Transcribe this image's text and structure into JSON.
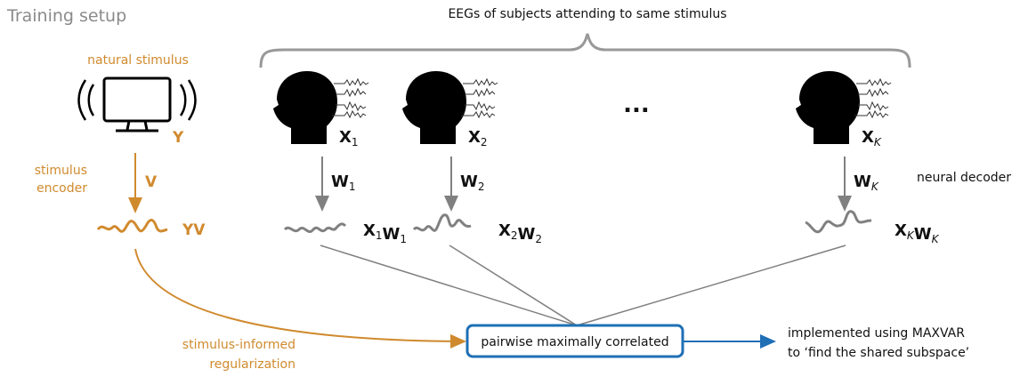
{
  "title": "Training setup",
  "brace_label": "EEGs of subjects attending to same stimulus",
  "stimulus": {
    "label": "natural stimulus",
    "signal": "Y",
    "encoder_lines": [
      "stimulus",
      "encoder"
    ],
    "encoder": "V",
    "output": "YV"
  },
  "ellipsis": "...",
  "subjects": [
    {
      "eeg": {
        "base": "X",
        "sub": "1"
      },
      "decoder": {
        "base": "W",
        "sub": "1"
      },
      "output": [
        {
          "base": "X",
          "sub": "1"
        },
        {
          "base": "W",
          "sub": "1"
        }
      ]
    },
    {
      "eeg": {
        "base": "X",
        "sub": "2"
      },
      "decoder": {
        "base": "W",
        "sub": "2"
      },
      "output": [
        {
          "base": "X",
          "sub": "2"
        },
        {
          "base": "W",
          "sub": "2"
        }
      ]
    },
    {
      "eeg": {
        "base": "X",
        "sub": "K"
      },
      "decoder": {
        "base": "W",
        "sub": "K"
      },
      "output": [
        {
          "base": "X",
          "sub": "K"
        },
        {
          "base": "W",
          "sub": "K"
        }
      ]
    }
  ],
  "decoder_label": "neural decoder",
  "center_box": "pairwise maximally correlated",
  "regularization_lines": [
    "stimulus-informed",
    "regularization"
  ],
  "implementation_lines": [
    "implemented using MAXVAR",
    "to ‘find the shared subspace’"
  ]
}
